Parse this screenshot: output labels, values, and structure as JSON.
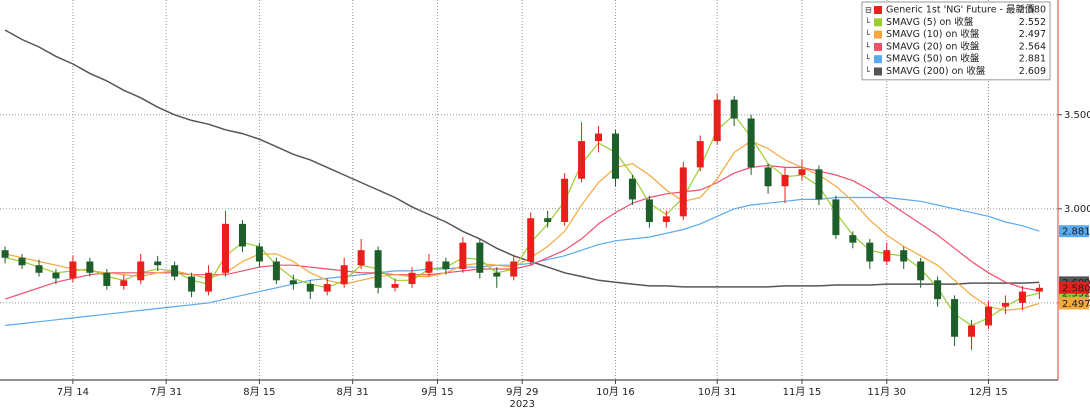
{
  "chart_data": {
    "type": "candlestick",
    "x": [
      0,
      2,
      4,
      6,
      8,
      10,
      12,
      14,
      16,
      18,
      20,
      22,
      24,
      26,
      28,
      30,
      32,
      34,
      36,
      38,
      40,
      42,
      44,
      46,
      48,
      50,
      52,
      54,
      56,
      58,
      60,
      62,
      64,
      66,
      68,
      70,
      72,
      74,
      76,
      78,
      80,
      82,
      84,
      86,
      88,
      90,
      92,
      94,
      96,
      98,
      100,
      102,
      104,
      106,
      108,
      110,
      112,
      114,
      116,
      118,
      120,
      122
    ],
    "xlim": [
      -0.6,
      124.2
    ],
    "xticks": [
      {
        "value": 8,
        "label": "7月 14"
      },
      {
        "value": 19,
        "label": "7月 31"
      },
      {
        "value": 30,
        "label": "8月 15"
      },
      {
        "value": 41,
        "label": "8月 31"
      },
      {
        "value": 51,
        "label": "9月 15"
      },
      {
        "value": 61,
        "label": "9月 29"
      },
      {
        "value": 72,
        "label": "10月 16"
      },
      {
        "value": 84,
        "label": "10月 31"
      },
      {
        "value": 94,
        "label": "11月 15"
      },
      {
        "value": 104,
        "label": "11月 30"
      },
      {
        "value": 116,
        "label": "12月 15"
      }
    ],
    "year_label": "2023",
    "ylim": [
      2.09,
      4.11
    ],
    "yticks": [
      {
        "value": 2.5,
        "label": "2.500"
      },
      {
        "value": 3.0,
        "label": "3.000"
      },
      {
        "value": 3.5,
        "label": "3.500"
      }
    ],
    "grid": true,
    "legend": "top-right",
    "series": [
      {
        "name": "Generic 1st 'NG' Future - 最新價",
        "up_color": "#e8201c",
        "down_color": "#1e5e2a",
        "color": "#e8201c",
        "last_label": "2.580",
        "open": [
          2.78,
          2.74,
          2.7,
          2.66,
          2.63,
          2.72,
          2.66,
          2.59,
          2.62,
          2.72,
          2.7,
          2.64,
          2.56,
          2.66,
          2.92,
          2.8,
          2.72,
          2.62,
          2.6,
          2.56,
          2.6,
          2.7,
          2.78,
          2.58,
          2.6,
          2.66,
          2.72,
          2.68,
          2.82,
          2.66,
          2.64,
          2.72,
          2.95,
          2.93,
          3.16,
          3.36,
          3.4,
          3.16,
          3.05,
          2.93,
          2.96,
          3.22,
          3.36,
          3.58,
          3.48,
          3.22,
          3.12,
          3.18,
          3.21,
          3.05,
          2.86,
          2.82,
          2.72,
          2.78,
          2.72,
          2.62,
          2.52,
          2.32,
          2.38,
          2.48,
          2.5,
          2.56
        ],
        "high": [
          2.8,
          2.76,
          2.73,
          2.68,
          2.75,
          2.74,
          2.68,
          2.65,
          2.76,
          2.75,
          2.72,
          2.66,
          2.7,
          2.99,
          2.94,
          2.82,
          2.74,
          2.65,
          2.62,
          2.63,
          2.74,
          2.84,
          2.8,
          2.63,
          2.69,
          2.76,
          2.74,
          2.85,
          2.84,
          2.69,
          2.75,
          2.98,
          2.99,
          3.19,
          3.46,
          3.44,
          3.42,
          3.18,
          3.07,
          2.99,
          3.25,
          3.39,
          3.61,
          3.6,
          3.5,
          3.24,
          3.22,
          3.26,
          3.23,
          3.07,
          2.88,
          2.84,
          2.82,
          2.8,
          2.74,
          2.64,
          2.54,
          2.41,
          2.51,
          2.54,
          2.59,
          2.6
        ],
        "low": [
          2.71,
          2.68,
          2.64,
          2.6,
          2.61,
          2.64,
          2.57,
          2.57,
          2.6,
          2.67,
          2.62,
          2.53,
          2.54,
          2.64,
          2.77,
          2.69,
          2.6,
          2.57,
          2.52,
          2.54,
          2.58,
          2.68,
          2.55,
          2.56,
          2.58,
          2.64,
          2.65,
          2.66,
          2.63,
          2.58,
          2.62,
          2.7,
          2.9,
          2.91,
          3.14,
          3.3,
          3.12,
          3.02,
          2.9,
          2.9,
          2.94,
          3.2,
          3.34,
          3.44,
          3.18,
          3.08,
          3.03,
          3.15,
          3.02,
          2.84,
          2.79,
          2.68,
          2.7,
          2.68,
          2.58,
          2.48,
          2.27,
          2.25,
          2.36,
          2.44,
          2.46,
          2.52
        ],
        "close": [
          2.74,
          2.7,
          2.66,
          2.63,
          2.72,
          2.66,
          2.59,
          2.62,
          2.72,
          2.7,
          2.64,
          2.56,
          2.66,
          2.92,
          2.8,
          2.72,
          2.62,
          2.6,
          2.56,
          2.6,
          2.7,
          2.78,
          2.58,
          2.6,
          2.66,
          2.72,
          2.68,
          2.82,
          2.66,
          2.64,
          2.72,
          2.95,
          2.93,
          3.16,
          3.36,
          3.4,
          3.16,
          3.05,
          2.93,
          2.96,
          3.22,
          3.36,
          3.58,
          3.48,
          3.22,
          3.12,
          3.18,
          3.21,
          3.05,
          2.86,
          2.82,
          2.72,
          2.78,
          2.72,
          2.62,
          2.52,
          2.32,
          2.38,
          2.48,
          2.5,
          2.56,
          2.58
        ]
      },
      {
        "name": "SMAVG (5)  on 收盤",
        "color": "#9acd32",
        "last_label": "2.552",
        "values": [
          2.74,
          2.72,
          2.69,
          2.66,
          2.67,
          2.68,
          2.64,
          2.62,
          2.66,
          2.68,
          2.67,
          2.62,
          2.6,
          2.75,
          2.82,
          2.8,
          2.7,
          2.63,
          2.6,
          2.58,
          2.62,
          2.7,
          2.68,
          2.62,
          2.62,
          2.68,
          2.69,
          2.74,
          2.73,
          2.66,
          2.68,
          2.82,
          2.92,
          3.04,
          3.24,
          3.35,
          3.3,
          3.18,
          3.03,
          2.97,
          3.06,
          3.22,
          3.42,
          3.5,
          3.38,
          3.24,
          3.17,
          3.18,
          3.12,
          2.98,
          2.86,
          2.78,
          2.76,
          2.75,
          2.68,
          2.58,
          2.44,
          2.38,
          2.42,
          2.48,
          2.53,
          2.552
        ]
      },
      {
        "name": "SMAVG (10)  on 收盤",
        "color": "#f5a83c",
        "last_label": "2.497",
        "values": [
          2.76,
          2.74,
          2.72,
          2.7,
          2.68,
          2.67,
          2.66,
          2.65,
          2.64,
          2.66,
          2.67,
          2.65,
          2.63,
          2.66,
          2.72,
          2.76,
          2.76,
          2.72,
          2.66,
          2.62,
          2.6,
          2.62,
          2.64,
          2.65,
          2.64,
          2.64,
          2.66,
          2.7,
          2.71,
          2.7,
          2.69,
          2.74,
          2.8,
          2.88,
          3.02,
          3.14,
          3.22,
          3.24,
          3.18,
          3.1,
          3.04,
          3.06,
          3.16,
          3.3,
          3.36,
          3.32,
          3.26,
          3.22,
          3.18,
          3.12,
          3.04,
          2.94,
          2.86,
          2.8,
          2.75,
          2.7,
          2.62,
          2.54,
          2.48,
          2.46,
          2.47,
          2.497
        ]
      },
      {
        "name": "SMAVG (20)  on 收盤",
        "color": "#f0506e",
        "last_label": "2.564",
        "values": [
          2.52,
          2.55,
          2.58,
          2.61,
          2.63,
          2.65,
          2.66,
          2.66,
          2.66,
          2.66,
          2.66,
          2.65,
          2.65,
          2.65,
          2.67,
          2.69,
          2.7,
          2.7,
          2.69,
          2.68,
          2.67,
          2.66,
          2.66,
          2.65,
          2.65,
          2.65,
          2.66,
          2.67,
          2.68,
          2.68,
          2.68,
          2.7,
          2.74,
          2.78,
          2.84,
          2.92,
          2.98,
          3.03,
          3.06,
          3.08,
          3.09,
          3.1,
          3.14,
          3.19,
          3.22,
          3.23,
          3.22,
          3.22,
          3.2,
          3.18,
          3.15,
          3.1,
          3.04,
          2.98,
          2.92,
          2.86,
          2.79,
          2.72,
          2.66,
          2.61,
          2.58,
          2.564
        ]
      },
      {
        "name": "SMAVG (50)  on 收盤",
        "color": "#5aaaf0",
        "last_label": "2.881",
        "values": [
          2.38,
          2.39,
          2.4,
          2.41,
          2.42,
          2.43,
          2.44,
          2.45,
          2.46,
          2.47,
          2.48,
          2.49,
          2.5,
          2.52,
          2.54,
          2.56,
          2.58,
          2.6,
          2.62,
          2.63,
          2.64,
          2.65,
          2.66,
          2.67,
          2.67,
          2.68,
          2.68,
          2.69,
          2.69,
          2.7,
          2.7,
          2.71,
          2.73,
          2.75,
          2.78,
          2.81,
          2.83,
          2.84,
          2.85,
          2.87,
          2.89,
          2.92,
          2.96,
          3.0,
          3.02,
          3.03,
          3.04,
          3.05,
          3.05,
          3.06,
          3.06,
          3.06,
          3.06,
          3.05,
          3.04,
          3.02,
          3.0,
          2.98,
          2.96,
          2.93,
          2.91,
          2.881
        ]
      },
      {
        "name": "SMAVG (200)  on 收盤",
        "color": "#555555",
        "last_label": "2.609",
        "values": [
          3.95,
          3.9,
          3.86,
          3.81,
          3.77,
          3.72,
          3.68,
          3.63,
          3.59,
          3.54,
          3.5,
          3.47,
          3.45,
          3.42,
          3.4,
          3.37,
          3.33,
          3.29,
          3.26,
          3.22,
          3.18,
          3.14,
          3.1,
          3.06,
          3.01,
          2.97,
          2.93,
          2.88,
          2.84,
          2.79,
          2.75,
          2.72,
          2.69,
          2.66,
          2.64,
          2.62,
          2.61,
          2.6,
          2.59,
          2.59,
          2.585,
          2.585,
          2.585,
          2.585,
          2.585,
          2.585,
          2.59,
          2.59,
          2.59,
          2.595,
          2.595,
          2.595,
          2.6,
          2.6,
          2.6,
          2.6,
          2.6,
          2.605,
          2.605,
          2.605,
          2.605,
          2.609
        ]
      }
    ]
  }
}
